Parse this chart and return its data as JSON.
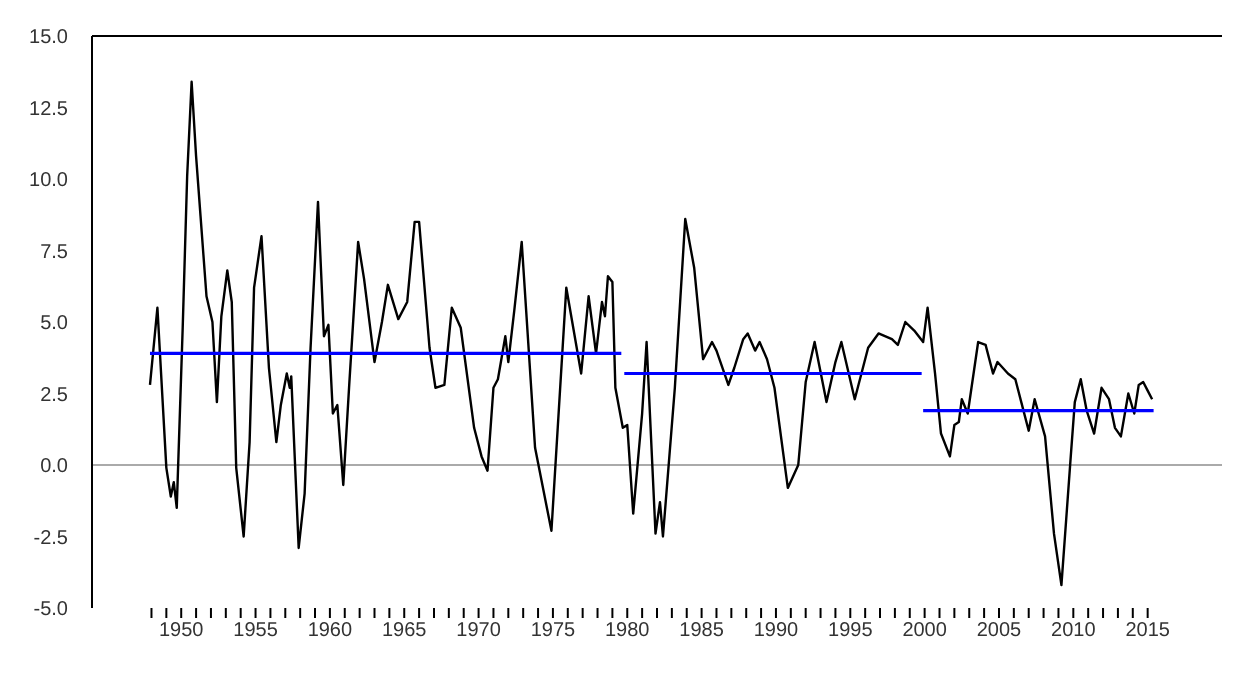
{
  "chart_data": {
    "type": "line",
    "xlim": [
      1944,
      2020
    ],
    "ylim": [
      -5,
      15
    ],
    "xticks": [
      {
        "value": 1948,
        "label": null
      },
      {
        "value": 1949,
        "label": null
      },
      1950,
      {
        "value": 1951,
        "label": null
      },
      {
        "value": 1952,
        "label": null
      },
      {
        "value": 1953,
        "label": null
      },
      {
        "value": 1954,
        "label": null
      },
      1955,
      {
        "value": 1956,
        "label": null
      },
      {
        "value": 1957,
        "label": null
      },
      {
        "value": 1958,
        "label": null
      },
      {
        "value": 1959,
        "label": null
      },
      1960,
      {
        "value": 1961,
        "label": null
      },
      {
        "value": 1962,
        "label": null
      },
      {
        "value": 1963,
        "label": null
      },
      {
        "value": 1964,
        "label": null
      },
      1965,
      {
        "value": 1966,
        "label": null
      },
      {
        "value": 1967,
        "label": null
      },
      {
        "value": 1968,
        "label": null
      },
      {
        "value": 1969,
        "label": null
      },
      1970,
      {
        "value": 1971,
        "label": null
      },
      {
        "value": 1972,
        "label": null
      },
      {
        "value": 1973,
        "label": null
      },
      {
        "value": 1974,
        "label": null
      },
      1975,
      {
        "value": 1976,
        "label": null
      },
      {
        "value": 1977,
        "label": null
      },
      {
        "value": 1978,
        "label": null
      },
      {
        "value": 1979,
        "label": null
      },
      1980,
      {
        "value": 1981,
        "label": null
      },
      {
        "value": 1982,
        "label": null
      },
      {
        "value": 1983,
        "label": null
      },
      {
        "value": 1984,
        "label": null
      },
      1985,
      {
        "value": 1986,
        "label": null
      },
      {
        "value": 1987,
        "label": null
      },
      {
        "value": 1988,
        "label": null
      },
      {
        "value": 1989,
        "label": null
      },
      1990,
      {
        "value": 1991,
        "label": null
      },
      {
        "value": 1992,
        "label": null
      },
      {
        "value": 1993,
        "label": null
      },
      {
        "value": 1994,
        "label": null
      },
      1995,
      {
        "value": 1996,
        "label": null
      },
      {
        "value": 1997,
        "label": null
      },
      {
        "value": 1998,
        "label": null
      },
      {
        "value": 1999,
        "label": null
      },
      2000,
      {
        "value": 2001,
        "label": null
      },
      {
        "value": 2002,
        "label": null
      },
      {
        "value": 2003,
        "label": null
      },
      {
        "value": 2004,
        "label": null
      },
      2005,
      {
        "value": 2006,
        "label": null
      },
      {
        "value": 2007,
        "label": null
      },
      {
        "value": 2008,
        "label": null
      },
      {
        "value": 2009,
        "label": null
      },
      2010,
      {
        "value": 2011,
        "label": null
      },
      {
        "value": 2012,
        "label": null
      },
      {
        "value": 2013,
        "label": null
      },
      {
        "value": 2014,
        "label": null
      },
      2015
    ],
    "yticks": [
      {
        "value": -5,
        "label": "-5.0"
      },
      {
        "value": -2.5,
        "label": "-2.5"
      },
      {
        "value": 0,
        "label": "0.0"
      },
      {
        "value": 2.5,
        "label": "2.5"
      },
      {
        "value": 5,
        "label": "5.0"
      },
      {
        "value": 7.5,
        "label": "7.5"
      },
      {
        "value": 10,
        "label": "10.0"
      },
      {
        "value": 12.5,
        "label": "12.5"
      },
      {
        "value": 15,
        "label": "15.0"
      }
    ],
    "grid": false,
    "marker": "none",
    "line_style": "solid",
    "ref_lines": [
      {
        "axis": "y",
        "value": 0,
        "color": "#aaaaaa"
      }
    ],
    "series": [
      {
        "color": "#000000",
        "x": [
          1947.9,
          1948.4,
          1949.0,
          1949.3,
          1949.5,
          1949.7,
          1950.1,
          1950.4,
          1950.7,
          1951.0,
          1951.3,
          1951.7,
          1952.1,
          1952.4,
          1952.7,
          1953.1,
          1953.4,
          1953.7,
          1954.2,
          1954.6,
          1954.9,
          1955.4,
          1955.9,
          1956.4,
          1956.7,
          1957.1,
          1957.3,
          1957.4,
          1957.9,
          1958.3,
          1958.7,
          1959.2,
          1959.6,
          1959.9,
          1960.2,
          1960.5,
          1960.9,
          1961.3,
          1961.9,
          1962.3,
          1963.0,
          1963.5,
          1963.9,
          1964.6,
          1965.2,
          1965.7,
          1966.0,
          1966.7,
          1967.1,
          1967.7,
          1968.2,
          1968.8,
          1969.7,
          1970.2,
          1970.6,
          1971.0,
          1971.3,
          1971.8,
          1972.0,
          1972.4,
          1972.9,
          1973.8,
          1974.9,
          1975.9,
          1976.9,
          1977.4,
          1977.9,
          1978.3,
          1978.5,
          1978.7,
          1979.0,
          1979.2,
          1979.7,
          1980.0,
          1980.4,
          1981.0,
          1981.3,
          1981.9,
          1982.2,
          1982.4,
          1983.2,
          1983.9,
          1984.5,
          1985.1,
          1985.7,
          1986.0,
          1986.8,
          1987.2,
          1987.8,
          1988.1,
          1988.6,
          1988.9,
          1989.4,
          1989.9,
          1990.8,
          1991.5,
          1992.0,
          1992.6,
          1993.4,
          1994.0,
          1994.4,
          1995.3,
          1996.2,
          1996.9,
          1997.8,
          1998.2,
          1998.7,
          1999.3,
          1999.9,
          2000.2,
          2000.7,
          2001.1,
          2001.7,
          2002.0,
          2002.3,
          2002.5,
          2002.9,
          2003.6,
          2004.1,
          2004.6,
          2004.9,
          2005.6,
          2006.1,
          2006.5,
          2007.0,
          2007.4,
          2008.1,
          2008.7,
          2009.2,
          2009.8,
          2010.1,
          2010.5,
          2010.9,
          2011.4,
          2011.9,
          2012.4,
          2012.8,
          2013.2,
          2013.7,
          2014.1,
          2014.4,
          2014.7,
          2015.0,
          2015.3
        ],
        "values": [
          2.8,
          5.5,
          -0.1,
          -1.1,
          -0.6,
          -1.5,
          4.8,
          10.1,
          13.4,
          10.8,
          8.7,
          5.9,
          5.0,
          2.2,
          5.2,
          6.8,
          5.7,
          -0.1,
          -2.5,
          0.8,
          6.2,
          8.0,
          3.4,
          0.8,
          2.1,
          3.2,
          2.7,
          3.1,
          -2.9,
          -1.0,
          4.1,
          9.2,
          4.5,
          4.9,
          1.8,
          2.1,
          -0.7,
          2.8,
          7.8,
          6.5,
          3.6,
          5.0,
          6.3,
          5.1,
          5.7,
          8.5,
          8.5,
          4.1,
          2.7,
          2.8,
          5.5,
          4.8,
          1.3,
          0.3,
          -0.2,
          2.7,
          3.0,
          4.5,
          3.6,
          5.4,
          7.8,
          0.6,
          -2.3,
          6.2,
          3.2,
          5.9,
          3.9,
          5.7,
          5.2,
          6.6,
          6.4,
          2.7,
          1.3,
          1.4,
          -1.7,
          1.8,
          4.3,
          -2.4,
          -1.3,
          -2.5,
          2.7,
          8.6,
          6.9,
          3.7,
          4.3,
          4.0,
          2.8,
          3.4,
          4.4,
          4.6,
          4.0,
          4.3,
          3.7,
          2.7,
          -0.8,
          0.0,
          2.9,
          4.3,
          2.2,
          3.6,
          4.3,
          2.3,
          4.1,
          4.6,
          4.4,
          4.2,
          5.0,
          4.7,
          4.3,
          5.5,
          3.2,
          1.1,
          0.3,
          1.4,
          1.5,
          2.3,
          1.8,
          4.3,
          4.2,
          3.2,
          3.6,
          3.2,
          3.0,
          2.2,
          1.2,
          2.3,
          1.0,
          -2.4,
          -4.2,
          0.1,
          2.2,
          3.0,
          1.9,
          1.1,
          2.7,
          2.3,
          1.3,
          1.0,
          2.5,
          1.8,
          2.8,
          2.9,
          2.6,
          2.3
        ]
      },
      {
        "color": "#0000ff",
        "x": [
          1947.9,
          1979.6
        ],
        "values": [
          3.9,
          3.9
        ]
      },
      {
        "color": "#0000ff",
        "x": [
          1979.8,
          1999.8
        ],
        "values": [
          3.2,
          3.2
        ]
      },
      {
        "color": "#0000ff",
        "x": [
          1999.9,
          2015.4
        ],
        "values": [
          1.9,
          1.9
        ]
      }
    ]
  }
}
